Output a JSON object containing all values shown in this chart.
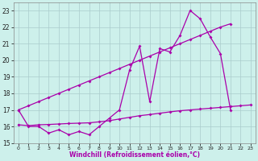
{
  "xlabel": "Windchill (Refroidissement éolien,°C)",
  "bg_color": "#cdf0eb",
  "line_color": "#aa00aa",
  "grid_color": "#aacccc",
  "xlim_min": -0.5,
  "xlim_max": 23.5,
  "ylim_min": 15,
  "ylim_max": 23.5,
  "yticks": [
    15,
    16,
    17,
    18,
    19,
    20,
    21,
    22,
    23
  ],
  "xticks": [
    0,
    1,
    2,
    3,
    4,
    5,
    6,
    7,
    8,
    9,
    10,
    11,
    12,
    13,
    14,
    15,
    16,
    17,
    18,
    19,
    20,
    21,
    22,
    23
  ],
  "line1_x": [
    0,
    1,
    2,
    3,
    4,
    5,
    6,
    7,
    8,
    9,
    10,
    11,
    12,
    13,
    14,
    15,
    16,
    17,
    18,
    19,
    20,
    21
  ],
  "line1_y": [
    17.0,
    16.0,
    16.0,
    15.6,
    15.8,
    15.5,
    15.7,
    15.5,
    16.0,
    16.5,
    17.0,
    19.4,
    20.85,
    17.5,
    20.7,
    20.5,
    21.5,
    23.0,
    22.5,
    21.4,
    20.4,
    17.0
  ],
  "line2_x": [
    0,
    1,
    2,
    3,
    4,
    5,
    6,
    7,
    8,
    9,
    10,
    11,
    12,
    13,
    14,
    15,
    16,
    17,
    18,
    19,
    20,
    21
  ],
  "line2_y": [
    17.0,
    17.25,
    17.5,
    17.75,
    18.0,
    18.25,
    18.5,
    18.75,
    19.0,
    19.25,
    19.5,
    19.75,
    20.0,
    20.25,
    20.5,
    20.75,
    21.0,
    21.25,
    21.5,
    21.75,
    22.0,
    22.2
  ],
  "line3_x": [
    0,
    1,
    2,
    3,
    4,
    5,
    6,
    7,
    8,
    9,
    10,
    11,
    12,
    13,
    14,
    15,
    16,
    17,
    18,
    19,
    20,
    21,
    22,
    23
  ],
  "line3_y": [
    16.1,
    16.05,
    16.1,
    16.12,
    16.15,
    16.18,
    16.2,
    16.22,
    16.28,
    16.35,
    16.45,
    16.55,
    16.65,
    16.72,
    16.8,
    16.88,
    16.95,
    17.0,
    17.05,
    17.1,
    17.15,
    17.2,
    17.25,
    17.3
  ]
}
